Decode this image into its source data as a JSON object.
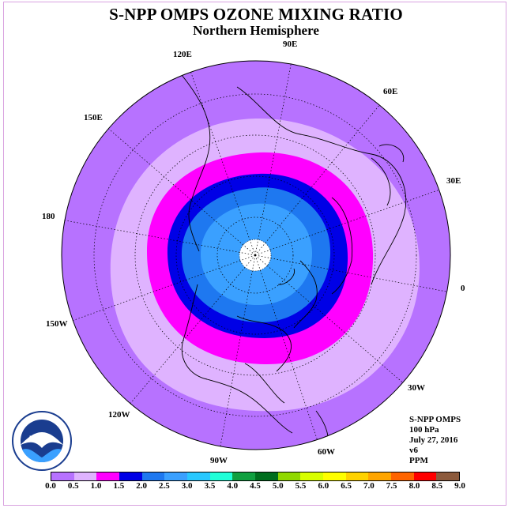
{
  "title": "S-NPP OMPS OZONE MIXING RATIO",
  "subtitle": "Northern Hemisphere",
  "longitude_labels": {
    "e90": "90E",
    "e60": "60E",
    "e30": "30E",
    "zero": "0",
    "w30": "30W",
    "w60": "60W",
    "w90": "90W",
    "w120": "120W",
    "w150": "150W",
    "d180": "180",
    "e150": "150E",
    "e120": "120E"
  },
  "info": {
    "instrument": "S-NPP OMPS",
    "level": "100 hPa",
    "date": "July 27, 2016",
    "version": "v6",
    "units": "PPM"
  },
  "logo": {
    "text": "NOAA",
    "icon": "noaa-logo"
  },
  "colorbar": {
    "ticks": [
      "0.0",
      "0.5",
      "1.0",
      "1.5",
      "2.0",
      "2.5",
      "3.0",
      "3.5",
      "4.0",
      "4.5",
      "5.0",
      "5.5",
      "6.0",
      "6.5",
      "7.0",
      "7.5",
      "8.0",
      "8.5",
      "9.0"
    ],
    "colors": [
      "#b772ff",
      "#dfb3ff",
      "#ff00ff",
      "#0000e6",
      "#1e78f0",
      "#3aa0ff",
      "#28c8ff",
      "#20ffd8",
      "#10a040",
      "#006e1e",
      "#90d800",
      "#d8ff00",
      "#ffff00",
      "#ffd200",
      "#ffa500",
      "#ff6400",
      "#ff0000",
      "#8c5a3c"
    ]
  },
  "map_fields": {
    "outer_ppm": "0.0-0.5",
    "band_ppm": "0.5-1.0",
    "ring_ppm": "1.0-1.5",
    "inner_ring_ppm": "1.5-2.0",
    "core_ppm": "2.0-2.5",
    "center_ppm": "2.5-3.0",
    "pole": "no data"
  },
  "colors": {
    "outer": "#b772ff",
    "band": "#dfb3ff",
    "ring": "#ff00ff",
    "inner_ring": "#0000e6",
    "core": "#1e78f0",
    "center": "#3aa0ff"
  }
}
